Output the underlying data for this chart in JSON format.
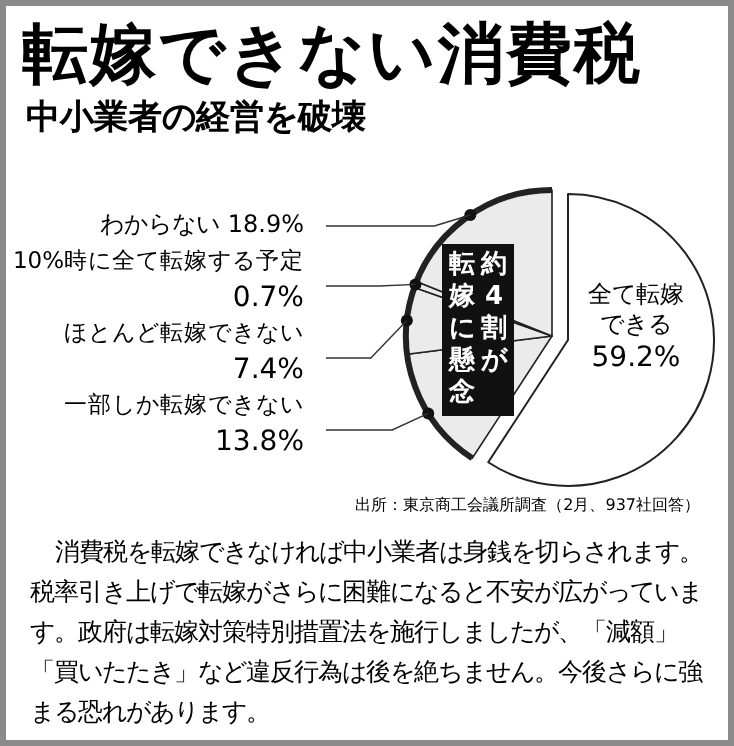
{
  "chart_data": {
    "type": "pie",
    "title": "転嫁できない消費税",
    "subtitle": "中小業者の経営を破壊",
    "categories": [
      "全て転嫁できる",
      "一部しか転嫁できない",
      "ほとんど転嫁できない",
      "10%時に全て転嫁する予定",
      "わからない"
    ],
    "values": [
      59.2,
      13.8,
      7.4,
      0.7,
      18.9
    ],
    "value_labels": [
      "59.2%",
      "13.8%",
      "7.4%",
      "0.7%",
      "18.9%"
    ],
    "colors": [
      "#ffffff",
      "#ebebeb",
      "#ebebeb",
      "#ebebeb",
      "#ebebeb"
    ],
    "annotations": [
      "約4割が",
      "転嫁に懸念",
      "出所：東京商工会議所調査（2月、937社回答）",
      "消費税を転嫁できなければ中小業者は身銭を切らされます。税率引き上げで転嫁がさらに困難になると不安が広がっています。政府は転嫁対策特別措置法を施行しましたが、「減額」「買いたたき」など違反行為は後を絶ちません。今後さらに強まる恐れがあります。"
    ]
  }
}
